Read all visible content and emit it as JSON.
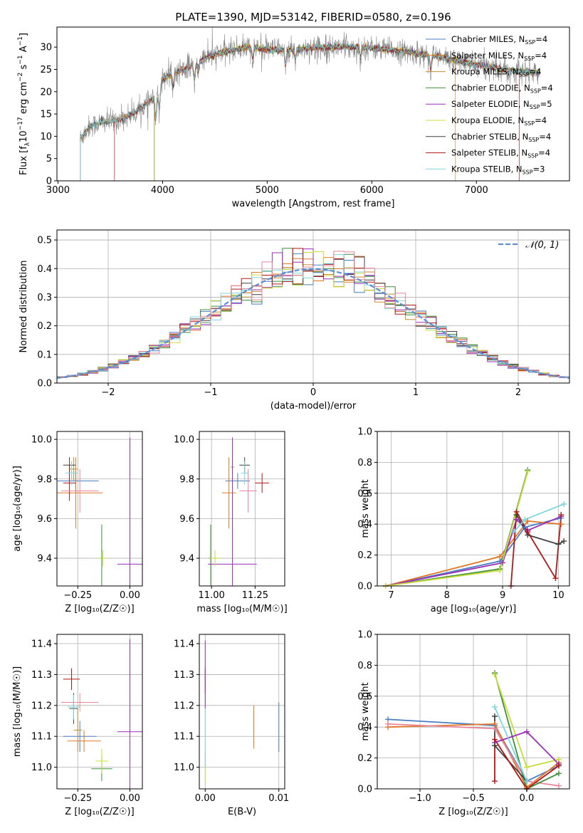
{
  "figure_title": "PLATE=1390, MJD=53142, FIBERID=0580, z=0.196",
  "series": [
    {
      "name": "Chabrier MILES, N",
      "sub": "SSP",
      "suffix": "=4",
      "color": "#4a7fc1"
    },
    {
      "name": "Salpeter MILES, N",
      "sub": "SSP",
      "suffix": "=4",
      "color": "#e07828"
    },
    {
      "name": "Kroupa MILES, N",
      "sub": "SSP",
      "suffix": "=4",
      "color": "#c98d2b"
    },
    {
      "name": "Chabrier ELODIE, N",
      "sub": "SSP",
      "suffix": "=4",
      "color": "#3c8f3c"
    },
    {
      "name": "Salpeter ELODIE, N",
      "sub": "SSP",
      "suffix": "=5",
      "color": "#9b2fb8"
    },
    {
      "name": "Kroupa ELODIE, N",
      "sub": "SSP",
      "suffix": "=4",
      "color": "#c8dc3a"
    },
    {
      "name": "Chabrier STELIB, N",
      "sub": "SSP",
      "suffix": "=4",
      "color": "#404040"
    },
    {
      "name": "Salpeter STELIB, N",
      "sub": "SSP",
      "suffix": "=4",
      "color": "#b01818"
    },
    {
      "name": "Kroupa STELIB, N",
      "sub": "SSP",
      "suffix": "=3",
      "color": "#7fd6e0"
    }
  ],
  "chart_data": [
    {
      "id": "spectrum",
      "type": "line",
      "title": "PLATE=1390, MJD=53142, FIBERID=0580, z=0.196",
      "xlabel": "wavelength [Angstrom, rest frame]",
      "ylabel_parts": {
        "a": "Flux [f",
        "b": "λ",
        "c": "10",
        "d": "−17",
        "e": " erg cm",
        "f": "−2",
        "g": " s",
        "h": "−1",
        "i": " A",
        "j": "−1",
        "k": "]"
      },
      "xlim": [
        2990,
        7890
      ],
      "ylim": [
        0,
        34.5
      ],
      "xticks": [
        3000,
        4000,
        5000,
        6000,
        7000
      ],
      "yticks": [
        0,
        5,
        10,
        15,
        20,
        25,
        30
      ],
      "legend_position": "upper right",
      "continuum": [
        [
          3210,
          9.3
        ],
        [
          3300,
          12.2
        ],
        [
          3400,
          13.0
        ],
        [
          3550,
          13.5
        ],
        [
          3650,
          14.3
        ],
        [
          3750,
          15.5
        ],
        [
          3850,
          17.3
        ],
        [
          3950,
          19.0
        ],
        [
          4000,
          23.0
        ],
        [
          4100,
          24.0
        ],
        [
          4250,
          25.5
        ],
        [
          4400,
          27.5
        ],
        [
          4600,
          29.0
        ],
        [
          4800,
          30.0
        ],
        [
          5000,
          29.5
        ],
        [
          5200,
          29.2
        ],
        [
          5400,
          29.8
        ],
        [
          5600,
          30.0
        ],
        [
          5800,
          30.0
        ],
        [
          6000,
          29.8
        ],
        [
          6200,
          29.3
        ],
        [
          6400,
          28.7
        ],
        [
          6600,
          28.0
        ],
        [
          6800,
          27.0
        ],
        [
          7000,
          26.0
        ],
        [
          7200,
          25.3
        ],
        [
          7400,
          24.5
        ],
        [
          7600,
          24.3
        ]
      ],
      "model_starts": {
        "Salpeter STELIB": 3540,
        "Salpeter ELODIE": 3920,
        "Kroupa ELODIE": 3920,
        "Chabrier ELODIE": 3920
      },
      "model_ends": {
        "Kroupa MILES": 6800,
        "Salpeter STELIB": 7410
      }
    },
    {
      "id": "residuals",
      "type": "step",
      "xlabel": "(data-model)/error",
      "ylabel": "Normed distribution",
      "xlim": [
        -2.5,
        2.5
      ],
      "ylim": [
        0,
        0.535
      ],
      "xticks": [
        -2,
        -1,
        0,
        1,
        2
      ],
      "yticks": [
        0.0,
        0.1,
        0.2,
        0.3,
        0.4,
        0.5
      ],
      "grid": true,
      "legend": "𝒩(0, 1)",
      "legend_color": "#5b8fd6",
      "bin_width": 0.1
    },
    {
      "id": "age_vs_Z",
      "type": "scatter",
      "xlabel": "Z [log₁₀(Z/Z☉)]",
      "ylabel": "age  [log₁₀(age/yr)]",
      "xlim": [
        -0.35,
        0.06
      ],
      "ylim": [
        9.26,
        10.04
      ],
      "xticks": [
        -0.25,
        0.0
      ],
      "yticks": [
        9.4,
        9.6,
        9.8,
        10.0
      ],
      "grid": true,
      "points": [
        {
          "x": -0.26,
          "y": 9.79,
          "xerr": 0.11,
          "yerr": 0.05,
          "c": 0
        },
        {
          "x": -0.26,
          "y": 9.73,
          "xerr": 0.13,
          "yerr": 0.18,
          "c": 1
        },
        {
          "x": -0.27,
          "y": 9.85,
          "xerr": 0.02,
          "yerr": 0.06,
          "c": 2
        },
        {
          "x": -0.135,
          "y": 9.4,
          "xerr": 0.01,
          "yerr": 0.17,
          "c": 3
        },
        {
          "x": 0.0,
          "y": 9.37,
          "xerr": 0.06,
          "yerr": 0.64,
          "c": 4
        },
        {
          "x": -0.13,
          "y": 9.4,
          "xerr": 0.02,
          "yerr": 0.04,
          "c": 5
        },
        {
          "x": -0.29,
          "y": 9.87,
          "xerr": 0.03,
          "yerr": 0.04,
          "c": 6
        },
        {
          "x": -0.29,
          "y": 9.78,
          "xerr": 0.03,
          "yerr": 0.09,
          "c": 7
        },
        {
          "x": -0.28,
          "y": 9.83,
          "xerr": 0.03,
          "yerr": 0.06,
          "c": 8
        },
        {
          "x": -0.24,
          "y": 9.74,
          "xerr": 0.09,
          "yerr": 0.11,
          "c": 9
        }
      ]
    },
    {
      "id": "age_vs_mass",
      "type": "scatter",
      "xlabel": "mass [log₁₀(M/M☉)]",
      "ylabel": "",
      "xlim": [
        10.93,
        11.42
      ],
      "ylim": [
        9.26,
        10.04
      ],
      "xticks": [
        11.0,
        11.25
      ],
      "yticks": [
        9.4,
        9.6,
        9.8,
        10.0
      ],
      "grid": true,
      "points": [
        {
          "x": 11.15,
          "y": 9.79,
          "xerr": 0.07,
          "yerr": 0.04,
          "c": 0
        },
        {
          "x": 11.1,
          "y": 9.73,
          "xerr": 0.04,
          "yerr": 0.18,
          "c": 1
        },
        {
          "x": 11.12,
          "y": 9.86,
          "xerr": 0.01,
          "yerr": 0.06,
          "c": 2
        },
        {
          "x": 10.995,
          "y": 9.4,
          "xerr": 0.01,
          "yerr": 0.17,
          "c": 3
        },
        {
          "x": 11.12,
          "y": 9.37,
          "xerr": 0.14,
          "yerr": 0.64,
          "c": 4
        },
        {
          "x": 11.02,
          "y": 9.4,
          "xerr": 0.03,
          "yerr": 0.04,
          "c": 5
        },
        {
          "x": 11.19,
          "y": 9.87,
          "xerr": 0.03,
          "yerr": 0.04,
          "c": 6
        },
        {
          "x": 11.29,
          "y": 9.78,
          "xerr": 0.04,
          "yerr": 0.05,
          "c": 7
        },
        {
          "x": 11.19,
          "y": 9.83,
          "xerr": 0.02,
          "yerr": 0.06,
          "c": 8
        },
        {
          "x": 11.21,
          "y": 9.74,
          "xerr": 0.05,
          "yerr": 0.11,
          "c": 9
        }
      ]
    },
    {
      "id": "weight_vs_age",
      "type": "line",
      "xlabel": "age  [log₁₀(age/yr)]",
      "ylabel": "mass weight",
      "xlim": [
        6.75,
        10.2
      ],
      "ylim": [
        0,
        1.0
      ],
      "xticks": [
        7,
        8,
        9,
        10
      ],
      "yticks": [
        0.0,
        0.2,
        0.4,
        0.6,
        0.8,
        1.0
      ],
      "grid": true,
      "lines": [
        {
          "c": 0,
          "x": [
            6.9,
            8.95,
            9.4,
            10.05
          ],
          "y": [
            0.0,
            0.16,
            0.38,
            0.44
          ]
        },
        {
          "c": 1,
          "x": [
            6.9,
            8.95,
            9.45,
            10.05
          ],
          "y": [
            0.0,
            0.19,
            0.42,
            0.4
          ]
        },
        {
          "c": 3,
          "x": [
            6.9,
            8.95,
            9.45
          ],
          "y": [
            0.0,
            0.11,
            0.75
          ]
        },
        {
          "c": 4,
          "x": [
            6.9,
            9.0,
            9.25,
            9.45,
            10.05
          ],
          "y": [
            0.0,
            0.15,
            0.43,
            0.36,
            0.45
          ]
        },
        {
          "c": 5,
          "x": [
            6.9,
            8.95,
            9.45
          ],
          "y": [
            0.0,
            0.1,
            0.74
          ]
        },
        {
          "c": 6,
          "x": [
            9.25,
            9.45,
            10.0,
            10.1
          ],
          "y": [
            0.46,
            0.33,
            0.27,
            0.29
          ]
        },
        {
          "c": 7,
          "x": [
            9.15,
            9.25,
            9.45,
            9.95,
            10.05
          ],
          "y": [
            0.0,
            0.48,
            0.35,
            0.05,
            0.46
          ]
        },
        {
          "c": 8,
          "x": [
            9.2,
            9.4,
            10.1
          ],
          "y": [
            0.35,
            0.43,
            0.53
          ]
        }
      ]
    },
    {
      "id": "mass_vs_Z",
      "type": "scatter",
      "xlabel": "Z [log₁₀(Z/Z☉)]",
      "ylabel": "mass [log₁₀(M/M☉)]",
      "xlim": [
        -0.35,
        0.06
      ],
      "ylim": [
        10.93,
        11.43
      ],
      "xticks": [
        -0.25,
        0.0
      ],
      "yticks": [
        11.0,
        11.1,
        11.2,
        11.3,
        11.4
      ],
      "grid": true,
      "points": [
        {
          "x": -0.24,
          "y": 11.1,
          "xerr": 0.08,
          "yerr": 0.05,
          "c": 0
        },
        {
          "x": -0.22,
          "y": 11.085,
          "xerr": 0.08,
          "yerr": 0.035,
          "c": 1
        },
        {
          "x": -0.25,
          "y": 11.12,
          "xerr": 0.02,
          "yerr": 0.07,
          "c": 2
        },
        {
          "x": -0.135,
          "y": 10.995,
          "xerr": 0.05,
          "yerr": 0.04,
          "c": 3
        },
        {
          "x": 0.0,
          "y": 11.115,
          "xerr": 0.06,
          "yerr": 0.3,
          "c": 4
        },
        {
          "x": -0.135,
          "y": 11.02,
          "xerr": 0.03,
          "yerr": 0.04,
          "c": 5
        },
        {
          "x": -0.27,
          "y": 11.19,
          "xerr": 0.02,
          "yerr": 0.05,
          "c": 6
        },
        {
          "x": -0.28,
          "y": 11.285,
          "xerr": 0.04,
          "yerr": 0.035,
          "c": 7
        },
        {
          "x": -0.27,
          "y": 11.195,
          "xerr": 0.03,
          "yerr": 0.04,
          "c": 8
        },
        {
          "x": -0.24,
          "y": 11.21,
          "xerr": 0.09,
          "yerr": 0.03,
          "c": 9
        }
      ]
    },
    {
      "id": "mass_vs_EBV",
      "type": "scatter",
      "xlabel": "E(B-V)",
      "ylabel": "",
      "xlim": [
        -0.0008,
        0.0108
      ],
      "ylim": [
        10.93,
        11.43
      ],
      "xticks": [
        0.0,
        0.01
      ],
      "yticks": [
        11.0,
        11.1,
        11.2,
        11.3,
        11.4
      ],
      "grid": true,
      "points": [
        {
          "x": 0.0,
          "y": 11.0,
          "xerr": 0,
          "yerr": 0.05,
          "c": 5
        },
        {
          "x": 0.0,
          "y": 11.12,
          "xerr": 0,
          "yerr": 0.12,
          "c": 8
        },
        {
          "x": 0.0,
          "y": 11.28,
          "xerr": 0,
          "yerr": 0.04,
          "c": 7
        },
        {
          "x": 0.0,
          "y": 11.3,
          "xerr": 0,
          "yerr": 0.11,
          "c": 4
        },
        {
          "x": 0.0066,
          "y": 11.13,
          "xerr": 0,
          "yerr": 0.07,
          "c": 1
        },
        {
          "x": 0.01,
          "y": 11.13,
          "xerr": 0,
          "yerr": 0.08,
          "c": 0
        }
      ]
    },
    {
      "id": "weight_vs_Z",
      "type": "line",
      "xlabel": "Z [log₁₀(Z/Z☉)]",
      "ylabel": "mass weight",
      "xlim": [
        -1.4,
        0.4
      ],
      "ylim": [
        0,
        1.0
      ],
      "xticks": [
        -1.0,
        -0.5,
        0.0
      ],
      "yticks": [
        0.0,
        0.2,
        0.4,
        0.6,
        0.8,
        1.0
      ],
      "grid": true,
      "lines": [
        {
          "c": 0,
          "x": [
            -1.3,
            -0.3,
            0.0,
            0.3
          ],
          "y": [
            0.45,
            0.41,
            0.05,
            0.15
          ]
        },
        {
          "c": 1,
          "x": [
            -1.3,
            -0.3,
            0.0,
            0.3
          ],
          "y": [
            0.4,
            0.42,
            0.01,
            0.17
          ]
        },
        {
          "c": 9,
          "x": [
            -1.3,
            -0.3,
            0.0,
            0.3
          ],
          "y": [
            0.42,
            0.39,
            0.05,
            0.02
          ]
        },
        {
          "c": 3,
          "x": [
            -0.3,
            0.0,
            0.3
          ],
          "y": [
            0.75,
            0.0,
            0.1
          ]
        },
        {
          "c": 5,
          "x": [
            -0.3,
            0.0,
            0.3
          ],
          "y": [
            0.74,
            0.14,
            0.19
          ]
        },
        {
          "c": 4,
          "x": [
            -0.3,
            0.0,
            0.3
          ],
          "y": [
            0.3,
            0.37,
            0.16
          ]
        },
        {
          "c": 6,
          "x": [
            -0.3,
            -0.3,
            0.0
          ],
          "y": [
            0.47,
            0.28,
            0.05
          ]
        },
        {
          "c": 7,
          "x": [
            -0.3,
            -0.3,
            0.0,
            0.3
          ],
          "y": [
            0.05,
            0.32,
            0.0,
            0.15
          ]
        },
        {
          "c": 8,
          "x": [
            -0.3,
            0.0
          ],
          "y": [
            0.53,
            0.05
          ]
        }
      ]
    }
  ],
  "extra_colors": [
    "#e8879a"
  ]
}
